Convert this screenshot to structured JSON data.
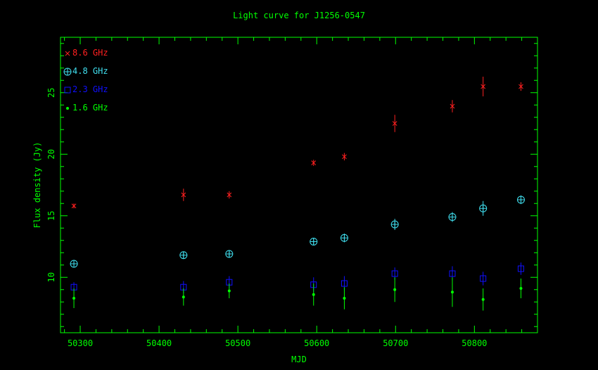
{
  "chart_data": {
    "type": "scatter",
    "title": "Light curve for J1256-0547",
    "xlabel": "MJD",
    "ylabel": "Flux density (Jy)",
    "xlim": [
      50275,
      50880
    ],
    "ylim": [
      5.5,
      29.5
    ],
    "x_ticks": [
      50300,
      50400,
      50500,
      50600,
      50700,
      50800
    ],
    "y_ticks": [
      10,
      15,
      20,
      25
    ],
    "legend_position": "top-left",
    "frame_color": "#00ff00",
    "title_color": "#00ff00",
    "series": [
      {
        "name": "8.6 GHz",
        "marker": "cross",
        "color": "#ff2020",
        "x": [
          50292,
          50431,
          50489,
          50596,
          50635,
          50699,
          50772,
          50811,
          50859
        ],
        "y": [
          15.8,
          16.7,
          16.7,
          19.3,
          19.8,
          22.5,
          23.9,
          25.5,
          25.5
        ],
        "err": [
          0.2,
          0.5,
          0.3,
          0.25,
          0.3,
          0.7,
          0.5,
          0.8,
          0.35
        ]
      },
      {
        "name": "4.8 GHz",
        "marker": "circle-plus",
        "color": "#40e0f0",
        "x": [
          50292,
          50431,
          50489,
          50596,
          50635,
          50699,
          50772,
          50811,
          50859
        ],
        "y": [
          11.1,
          11.8,
          11.9,
          12.9,
          13.2,
          14.3,
          14.9,
          15.6,
          16.3
        ],
        "err": [
          0.2,
          0.3,
          0.3,
          0.3,
          0.35,
          0.45,
          0.4,
          0.6,
          0.35
        ]
      },
      {
        "name": "2.3 GHz",
        "marker": "square",
        "color": "#1010ff",
        "x": [
          50292,
          50431,
          50489,
          50596,
          50635,
          50699,
          50772,
          50811,
          50859
        ],
        "y": [
          9.2,
          9.2,
          9.6,
          9.4,
          9.5,
          10.3,
          10.3,
          9.9,
          10.7
        ],
        "err": [
          0.4,
          0.5,
          0.5,
          0.6,
          0.6,
          0.5,
          0.6,
          0.55,
          0.5
        ]
      },
      {
        "name": "1.6 GHz",
        "marker": "dot",
        "color": "#00ff00",
        "x": [
          50292,
          50431,
          50489,
          50596,
          50635,
          50699,
          50772,
          50811,
          50859
        ],
        "y": [
          8.3,
          8.4,
          8.9,
          8.6,
          8.3,
          9.0,
          8.8,
          8.2,
          9.1
        ],
        "err": [
          0.8,
          0.7,
          0.6,
          0.9,
          0.9,
          1.0,
          1.2,
          0.9,
          0.8
        ]
      }
    ]
  }
}
